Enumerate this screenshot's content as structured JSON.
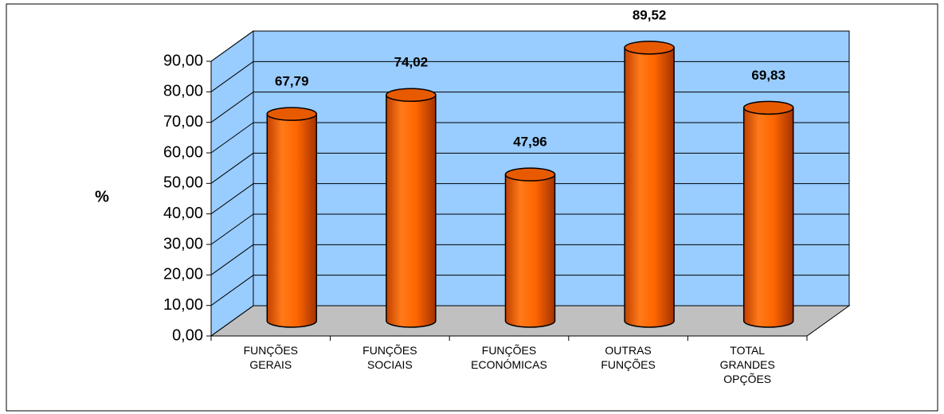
{
  "chart_data": {
    "type": "bar3d",
    "y_label": "%",
    "categories": [
      "FUNÇÕES GERAIS",
      "FUNÇÕES SOCIAIS",
      "FUNÇÕES ECONÓMICAS",
      "OUTRAS FUNÇÕES",
      "TOTAL GRANDES OPÇÕES"
    ],
    "values": [
      67.79,
      74.02,
      47.96,
      89.52,
      69.83
    ],
    "value_labels": [
      "67,79",
      "74,02",
      "47,96",
      "89,52",
      "69,83"
    ],
    "color": "#ff6600",
    "ylim": [
      0,
      90
    ],
    "yticks": [
      {
        "value": 0,
        "label": "0,00"
      },
      {
        "value": 10,
        "label": "10,00"
      },
      {
        "value": 20,
        "label": "20,00"
      },
      {
        "value": 30,
        "label": "30,00"
      },
      {
        "value": 40,
        "label": "40,00"
      },
      {
        "value": 50,
        "label": "50,00"
      },
      {
        "value": 60,
        "label": "60,00"
      },
      {
        "value": 70,
        "label": "70,00"
      },
      {
        "value": 80,
        "label": "80,00"
      },
      {
        "value": 90,
        "label": "90,00"
      }
    ],
    "grid": true
  }
}
